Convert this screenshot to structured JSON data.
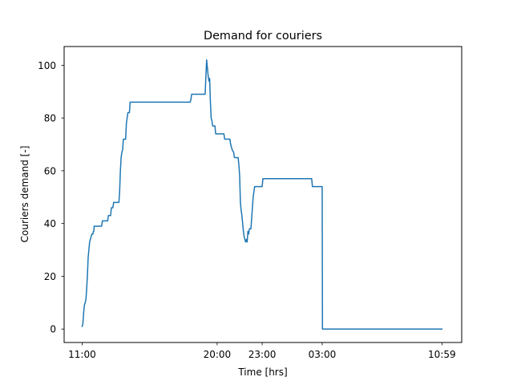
{
  "chart_data": {
    "type": "line",
    "title": "Demand for couriers",
    "xlabel": "Time [hrs]",
    "ylabel": "Couriers demand [-]",
    "xlim": [
      -1.2,
      25.3
    ],
    "ylim": [
      -5.1,
      107.1
    ],
    "x_ticks": [
      {
        "value": 0,
        "label": "11:00"
      },
      {
        "value": 9,
        "label": "20:00"
      },
      {
        "value": 12,
        "label": "23:00"
      },
      {
        "value": 16,
        "label": "03:00"
      },
      {
        "value": 23.983,
        "label": "10:59"
      }
    ],
    "y_ticks": [
      {
        "value": 0,
        "label": "0"
      },
      {
        "value": 20,
        "label": "20"
      },
      {
        "value": 40,
        "label": "40"
      },
      {
        "value": 60,
        "label": "60"
      },
      {
        "value": 80,
        "label": "80"
      },
      {
        "value": 100,
        "label": "100"
      }
    ],
    "grid": false,
    "legend": "none",
    "series": [
      {
        "color": "#1f77b4",
        "points": [
          [
            0.0,
            1
          ],
          [
            0.05,
            2
          ],
          [
            0.1,
            6
          ],
          [
            0.15,
            9
          ],
          [
            0.25,
            11
          ],
          [
            0.3,
            15
          ],
          [
            0.35,
            20
          ],
          [
            0.4,
            27
          ],
          [
            0.45,
            30
          ],
          [
            0.5,
            33
          ],
          [
            0.55,
            34
          ],
          [
            0.6,
            35
          ],
          [
            0.65,
            36
          ],
          [
            0.72,
            36
          ],
          [
            0.75,
            37
          ],
          [
            0.78,
            37
          ],
          [
            0.8,
            39
          ],
          [
            1.3,
            39
          ],
          [
            1.35,
            41
          ],
          [
            1.7,
            41
          ],
          [
            1.75,
            43
          ],
          [
            1.9,
            43
          ],
          [
            1.95,
            46
          ],
          [
            2.05,
            46
          ],
          [
            2.1,
            48
          ],
          [
            2.45,
            48
          ],
          [
            2.5,
            52
          ],
          [
            2.55,
            60
          ],
          [
            2.6,
            65
          ],
          [
            2.65,
            67
          ],
          [
            2.7,
            68
          ],
          [
            2.75,
            72
          ],
          [
            2.9,
            72
          ],
          [
            2.95,
            78
          ],
          [
            3.0,
            80
          ],
          [
            3.05,
            82
          ],
          [
            3.15,
            82
          ],
          [
            3.2,
            86
          ],
          [
            7.2,
            86
          ],
          [
            7.25,
            87
          ],
          [
            7.3,
            89
          ],
          [
            8.2,
            89
          ],
          [
            8.25,
            96
          ],
          [
            8.3,
            102
          ],
          [
            8.35,
            99
          ],
          [
            8.4,
            96
          ],
          [
            8.45,
            94
          ],
          [
            8.5,
            95
          ],
          [
            8.55,
            86
          ],
          [
            8.6,
            80
          ],
          [
            8.65,
            79
          ],
          [
            8.7,
            77
          ],
          [
            8.85,
            77
          ],
          [
            8.9,
            74
          ],
          [
            9.45,
            74
          ],
          [
            9.5,
            72
          ],
          [
            9.85,
            72
          ],
          [
            9.9,
            70
          ],
          [
            10.0,
            68
          ],
          [
            10.1,
            67
          ],
          [
            10.15,
            65
          ],
          [
            10.4,
            65
          ],
          [
            10.45,
            62
          ],
          [
            10.5,
            58
          ],
          [
            10.55,
            48
          ],
          [
            10.6,
            45
          ],
          [
            10.65,
            43
          ],
          [
            10.7,
            40
          ],
          [
            10.75,
            37
          ],
          [
            10.8,
            35
          ],
          [
            10.85,
            34
          ],
          [
            10.9,
            33
          ],
          [
            10.95,
            34
          ],
          [
            11.0,
            33
          ],
          [
            11.05,
            37
          ],
          [
            11.1,
            36
          ],
          [
            11.15,
            38
          ],
          [
            11.25,
            38
          ],
          [
            11.3,
            42
          ],
          [
            11.35,
            46
          ],
          [
            11.4,
            50
          ],
          [
            11.45,
            52
          ],
          [
            11.5,
            54
          ],
          [
            12.0,
            54
          ],
          [
            12.05,
            57
          ],
          [
            15.3,
            57
          ],
          [
            15.35,
            54
          ],
          [
            16.0,
            54
          ],
          [
            16.02,
            0
          ],
          [
            23.983,
            0
          ]
        ]
      }
    ]
  }
}
